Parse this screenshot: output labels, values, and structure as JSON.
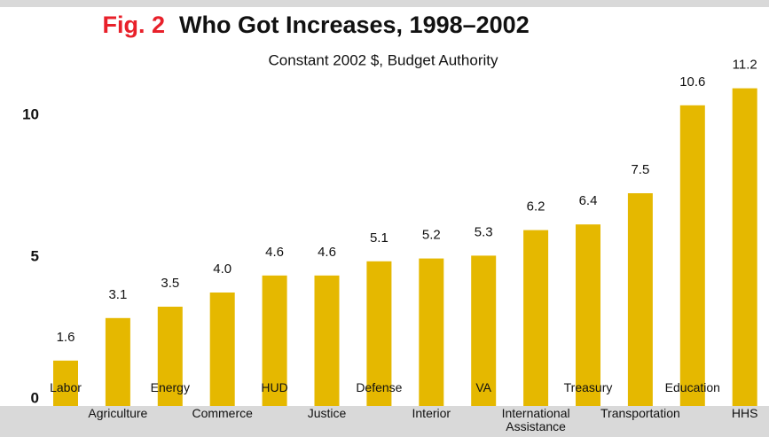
{
  "chart_data": {
    "type": "bar",
    "title_prefix": "Fig. 2",
    "title": "Who Got Increases, 1998–2002",
    "subtitle": "Constant 2002 $, Budget Authority",
    "categories": [
      "Labor",
      "Agriculture",
      "Energy",
      "Commerce",
      "HUD",
      "Justice",
      "Defense",
      "Interior",
      "VA",
      "International Assistance",
      "Treasury",
      "Transportation",
      "Education",
      "HHS"
    ],
    "values": [
      1.6,
      3.1,
      3.5,
      4.0,
      4.6,
      4.6,
      5.1,
      5.2,
      5.3,
      6.2,
      6.4,
      7.5,
      10.6,
      11.2
    ],
    "value_labels": [
      "1.6",
      "3.1",
      "3.5",
      "4.0",
      "4.6",
      "4.6",
      "5.1",
      "5.2",
      "5.3",
      "6.2",
      "6.4",
      "7.5",
      "10.6",
      "11.2"
    ],
    "color": "#e5b800",
    "ylim": [
      0,
      12
    ],
    "yticks": [
      0,
      5,
      10
    ],
    "grid": false
  }
}
